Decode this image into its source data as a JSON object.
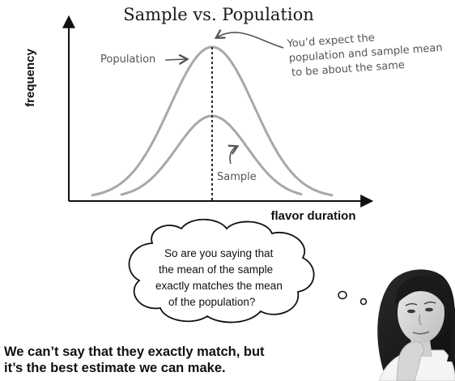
{
  "title": "Sample vs. Population",
  "ylabel": "frequency",
  "xlabel": "flavor duration",
  "annotations": {
    "population": "Population",
    "sample": "Sample",
    "mean_note": [
      "You’d expect the",
      "population and sample mean",
      "to be about the same"
    ]
  },
  "thought_bubble": {
    "lines": [
      "So are you saying that",
      "the mean of the sample",
      "exactly matches the mean",
      "of the population?"
    ]
  },
  "caption": {
    "lines": [
      "We can’t say that they exactly match, but",
      "it’s the best estimate we can make."
    ]
  },
  "colors": {
    "curve": "#a8a8a8",
    "axis": "#111111",
    "handwriting": "#555555"
  },
  "illustration": "woman-thinking-photo"
}
